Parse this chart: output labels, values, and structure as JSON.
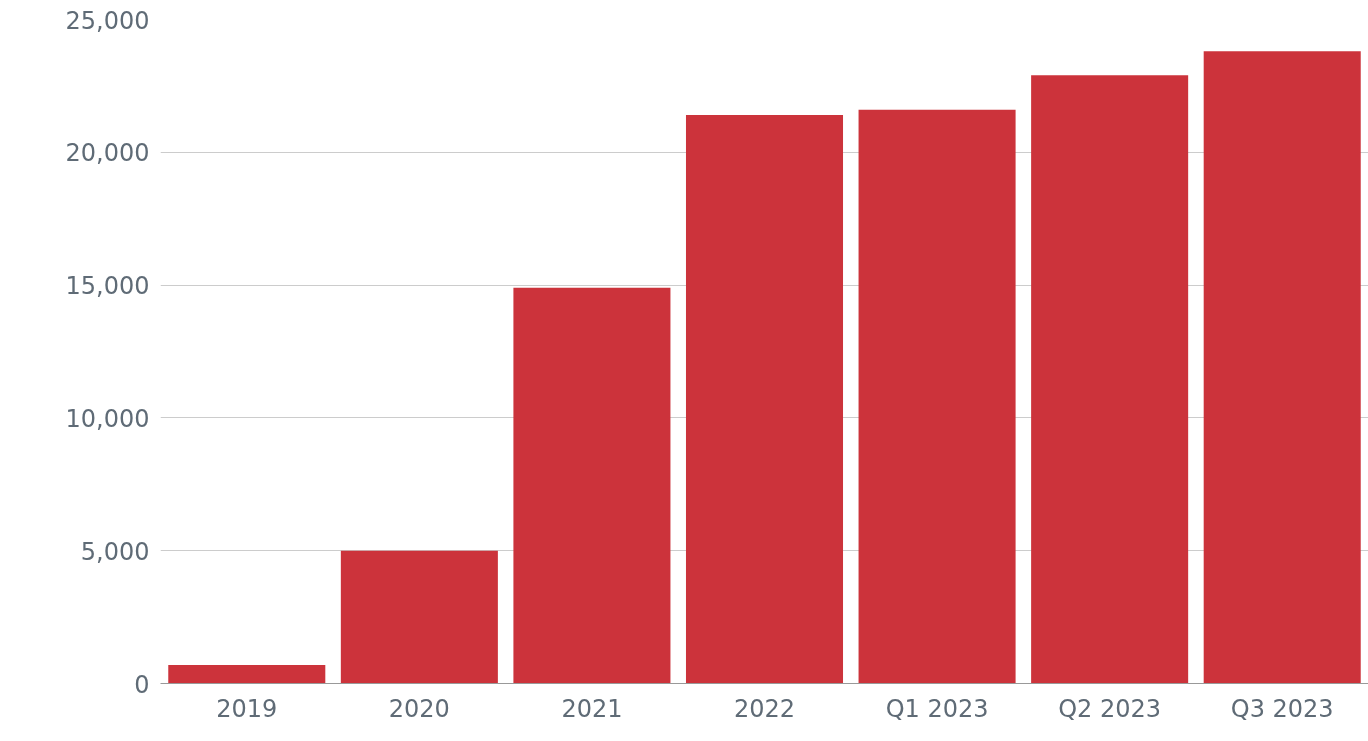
{
  "chart_data": {
    "type": "bar",
    "categories": [
      "2019",
      "2020",
      "2021",
      "2022",
      "Q1 2023",
      "Q2 2023",
      "Q3 2023"
    ],
    "values": [
      700,
      5000,
      14900,
      21400,
      21600,
      22900,
      23800
    ],
    "color": "#cc333b",
    "ylim": [
      0,
      25000
    ],
    "yticks": [
      0,
      {
        "value": 5000,
        "label": "5,000"
      },
      {
        "value": 10000,
        "label": "10,000"
      },
      {
        "value": 15000,
        "label": "15,000"
      },
      {
        "value": 20000,
        "label": "20,000"
      },
      {
        "value": 25000,
        "label": "25,000"
      }
    ],
    "grid": "y"
  }
}
